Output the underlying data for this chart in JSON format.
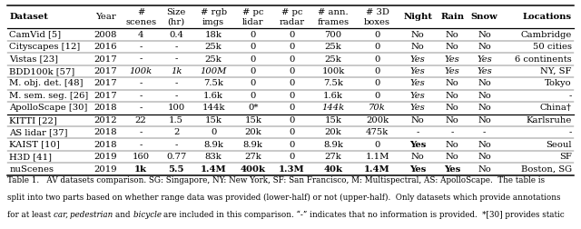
{
  "headers": [
    "Dataset",
    "Year",
    "#\nscenes",
    "Size\n(hr)",
    "# rgb\nimgs",
    "# pc\nlidar",
    "# pc\nradar",
    "# ann.\nframes",
    "# 3D\nboxes",
    "Night",
    "Rain",
    "Snow",
    "Locations"
  ],
  "upper_rows": [
    [
      "CamVid [5]",
      "2008",
      "4",
      "0.4",
      "18k",
      "0",
      "0",
      "700",
      "0",
      "No",
      "No",
      "No",
      "Cambridge"
    ],
    [
      "Cityscapes [12]",
      "2016",
      "-",
      "-",
      "25k",
      "0",
      "0",
      "25k",
      "0",
      "No",
      "No",
      "No",
      "50 cities"
    ],
    [
      "Vistas [23]",
      "2017",
      "-",
      "-",
      "25k",
      "0",
      "0",
      "25k",
      "0",
      "Yes",
      "Yes",
      "Yes",
      "6 continents"
    ],
    [
      "BDD100k [57]",
      "2017",
      "100k",
      "1k",
      "100M",
      "0",
      "0",
      "100k",
      "0",
      "Yes",
      "Yes",
      "Yes",
      "NY, SF"
    ],
    [
      "M. obj. det. [48]",
      "2017",
      "-",
      "-",
      "7.5k",
      "0",
      "0",
      "7.5k",
      "0",
      "Yes",
      "No",
      "No",
      "Tokyo"
    ],
    [
      "M. sem. seg. [26]",
      "2017",
      "-",
      "-",
      "1.6k",
      "0",
      "0",
      "1.6k",
      "0",
      "Yes",
      "No",
      "No",
      "-"
    ],
    [
      "ApolloScape [30]",
      "2018",
      "-",
      "100",
      "144k",
      "0*",
      "0",
      "144k",
      "70k",
      "Yes",
      "No",
      "No",
      "China†"
    ]
  ],
  "lower_rows": [
    [
      "KITTI [22]",
      "2012",
      "22",
      "1.5",
      "15k",
      "15k",
      "0",
      "15k",
      "200k",
      "No",
      "No",
      "No",
      "Karlsruhe"
    ],
    [
      "AS lidar [37]",
      "2018",
      "-",
      "2",
      "0",
      "20k",
      "0",
      "20k",
      "475k",
      "-",
      "-",
      "-",
      "-"
    ],
    [
      "KAIST [10]",
      "2018",
      "-",
      "-",
      "8.9k",
      "8.9k",
      "0",
      "8.9k",
      "0",
      "Yes",
      "No",
      "No",
      "Seoul"
    ],
    [
      "H3D [41]",
      "2019",
      "160",
      "0.77",
      "83k",
      "27k",
      "0",
      "27k",
      "1.1M",
      "No",
      "No",
      "No",
      "SF"
    ],
    [
      "nuScenes",
      "2019",
      "1k",
      "5.5",
      "1.4M",
      "400k",
      "1.3M",
      "40k",
      "1.4M",
      "Yes",
      "Yes",
      "No",
      "Boston, SG"
    ]
  ],
  "italic_upper": [
    [
      false,
      false,
      false,
      false,
      false,
      false,
      false,
      false,
      false,
      false,
      false,
      false,
      false
    ],
    [
      false,
      false,
      false,
      false,
      false,
      false,
      false,
      false,
      false,
      false,
      false,
      false,
      false
    ],
    [
      false,
      false,
      false,
      false,
      false,
      false,
      false,
      false,
      false,
      true,
      true,
      true,
      false
    ],
    [
      false,
      false,
      true,
      true,
      true,
      false,
      false,
      false,
      false,
      true,
      true,
      true,
      false
    ],
    [
      false,
      false,
      false,
      false,
      false,
      false,
      false,
      false,
      false,
      true,
      false,
      false,
      false
    ],
    [
      false,
      false,
      false,
      false,
      false,
      false,
      false,
      false,
      false,
      true,
      false,
      false,
      false
    ],
    [
      false,
      false,
      false,
      false,
      false,
      false,
      false,
      true,
      true,
      true,
      false,
      false,
      false
    ]
  ],
  "bold_lower": [
    [
      false,
      false,
      false,
      false,
      false,
      false,
      false,
      false,
      false,
      false,
      false,
      false,
      false
    ],
    [
      false,
      false,
      false,
      false,
      false,
      false,
      false,
      false,
      false,
      false,
      false,
      false,
      false
    ],
    [
      false,
      false,
      false,
      false,
      false,
      false,
      false,
      false,
      false,
      true,
      false,
      false,
      false
    ],
    [
      false,
      false,
      false,
      false,
      false,
      false,
      false,
      false,
      false,
      false,
      false,
      false,
      false
    ],
    [
      false,
      false,
      true,
      true,
      true,
      true,
      true,
      true,
      true,
      true,
      true,
      false,
      false
    ]
  ],
  "col_widths_rel": [
    1.35,
    0.56,
    0.61,
    0.56,
    0.67,
    0.64,
    0.64,
    0.73,
    0.73,
    0.61,
    0.53,
    0.53,
    1.22
  ],
  "caption_lines": [
    "Table 1.   AV datasets comparison. SG: Singapore, NY: New York, SF: San Francisco, M: Multispectral, AS: ApolloScape.  The table is",
    "split into two parts based on whether range data was provided (lower-half) or not (upper-half).  Only datasets which provide annotations",
    "for at least car, pedestrian and bicycle are included in this comparison. “-” indicates that no information is provided.  *[30] provides static"
  ],
  "caption_italic_words": [
    "car,",
    "pedestrian",
    "bicycle"
  ],
  "bg_color": "#ffffff",
  "line_color": "#000000",
  "font_size": 7.2,
  "header_font_size": 7.2
}
